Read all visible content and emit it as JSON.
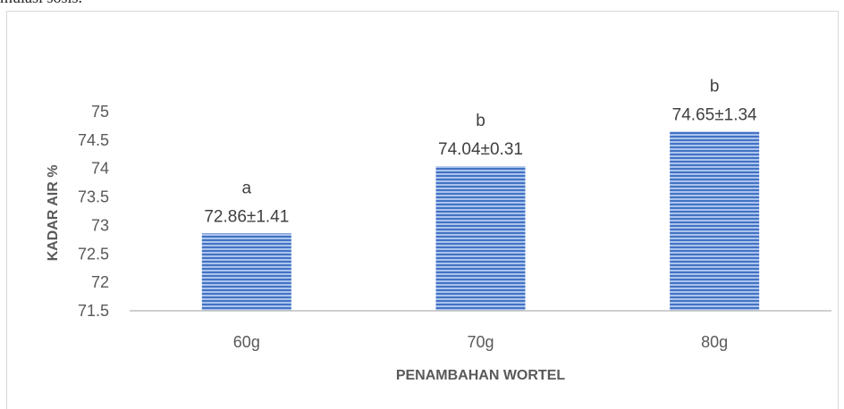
{
  "caption_fragment": "mulasi sosis.",
  "chart_data": {
    "type": "bar",
    "categories": [
      "60g",
      "70g",
      "80g"
    ],
    "values": [
      72.86,
      74.04,
      74.65
    ],
    "value_labels": [
      "72.86±1.41",
      "74.04±0.31",
      "74.65±1.34"
    ],
    "significance_letters": [
      "a",
      "b",
      "b"
    ],
    "ylim": [
      71.5,
      75
    ],
    "yticks": [
      "71.5",
      "72",
      "72.5",
      "73",
      "73.5",
      "74",
      "74.5",
      "75"
    ],
    "xlabel": "PENAMBAHAN WORTEL",
    "ylabel": "KADAR AIR %",
    "grid": false,
    "bar_color": "#4472c4"
  }
}
